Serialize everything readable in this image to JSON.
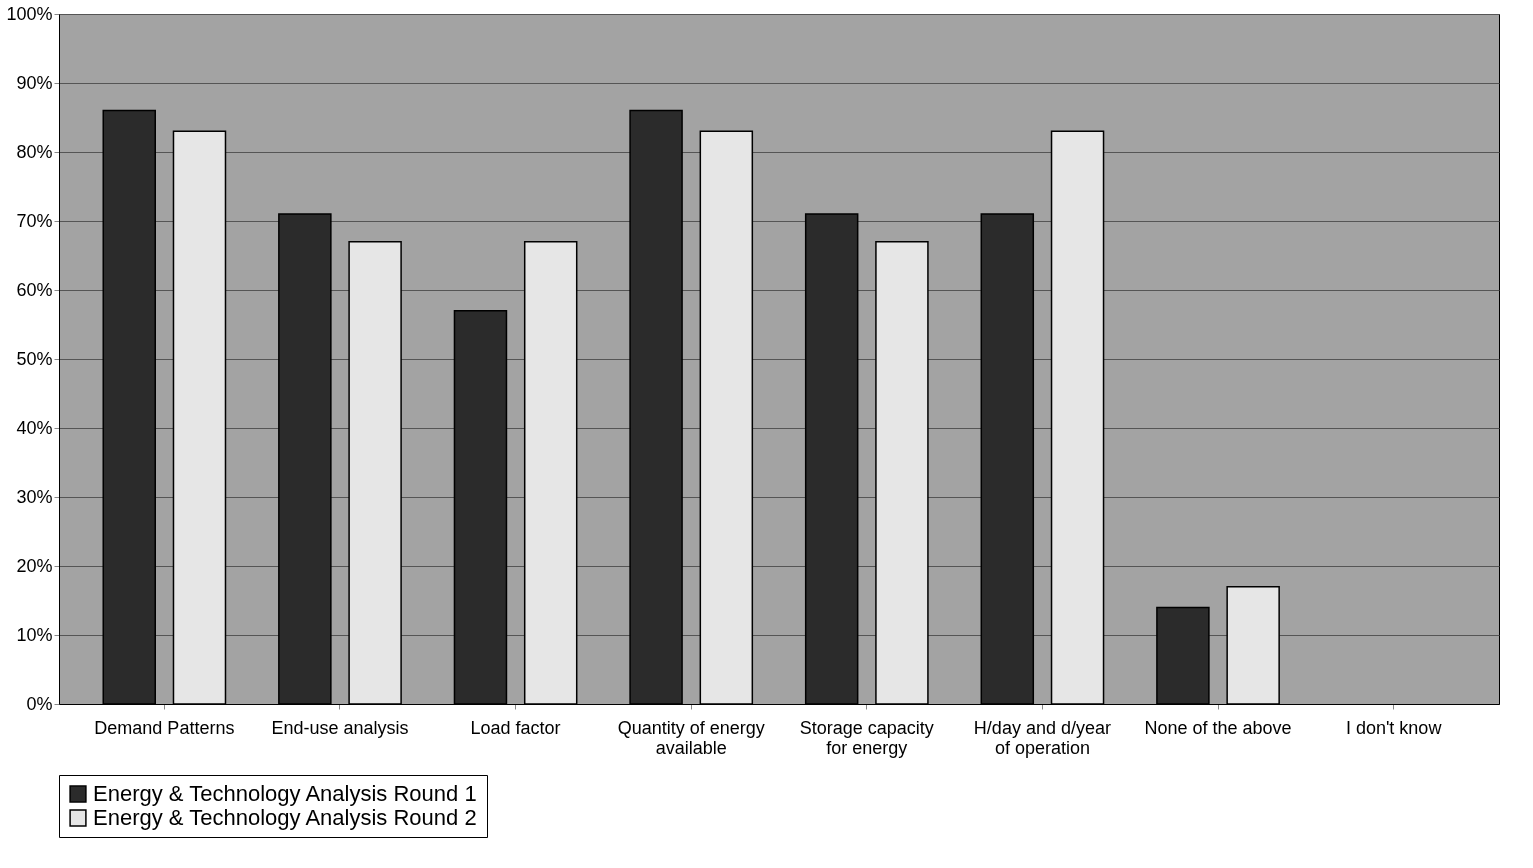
{
  "chart_data": {
    "type": "bar",
    "categories": [
      "Demand Patterns",
      "End-use analysis",
      "Load factor",
      "Quantity of energy available",
      "Storage capacity for energy",
      "H/day and d/year of operation",
      "None of the above",
      "I don't know"
    ],
    "series": [
      {
        "name": "Energy & Technology Analysis Round 1",
        "color": "#2b2b2b",
        "values": [
          86,
          71,
          57,
          86,
          71,
          71,
          14,
          null
        ]
      },
      {
        "name": "Energy & Technology Analysis Round 2",
        "color": "#e6e6e6",
        "values": [
          83,
          67,
          67,
          83,
          67,
          83,
          17,
          null
        ]
      }
    ],
    "ylim": [
      0,
      100
    ],
    "yticks": [
      {
        "value": 0,
        "label": "0%"
      },
      {
        "value": 10,
        "label": "10%"
      },
      {
        "value": 20,
        "label": "20%"
      },
      {
        "value": 30,
        "label": "30%"
      },
      {
        "value": 40,
        "label": "40%"
      },
      {
        "value": 50,
        "label": "50%"
      },
      {
        "value": 60,
        "label": "60%"
      },
      {
        "value": 70,
        "label": "70%"
      },
      {
        "value": 80,
        "label": "80%"
      },
      {
        "value": 90,
        "label": "90%"
      },
      {
        "value": 100,
        "label": "100%"
      }
    ],
    "grid": "y",
    "legend": "bottom"
  }
}
